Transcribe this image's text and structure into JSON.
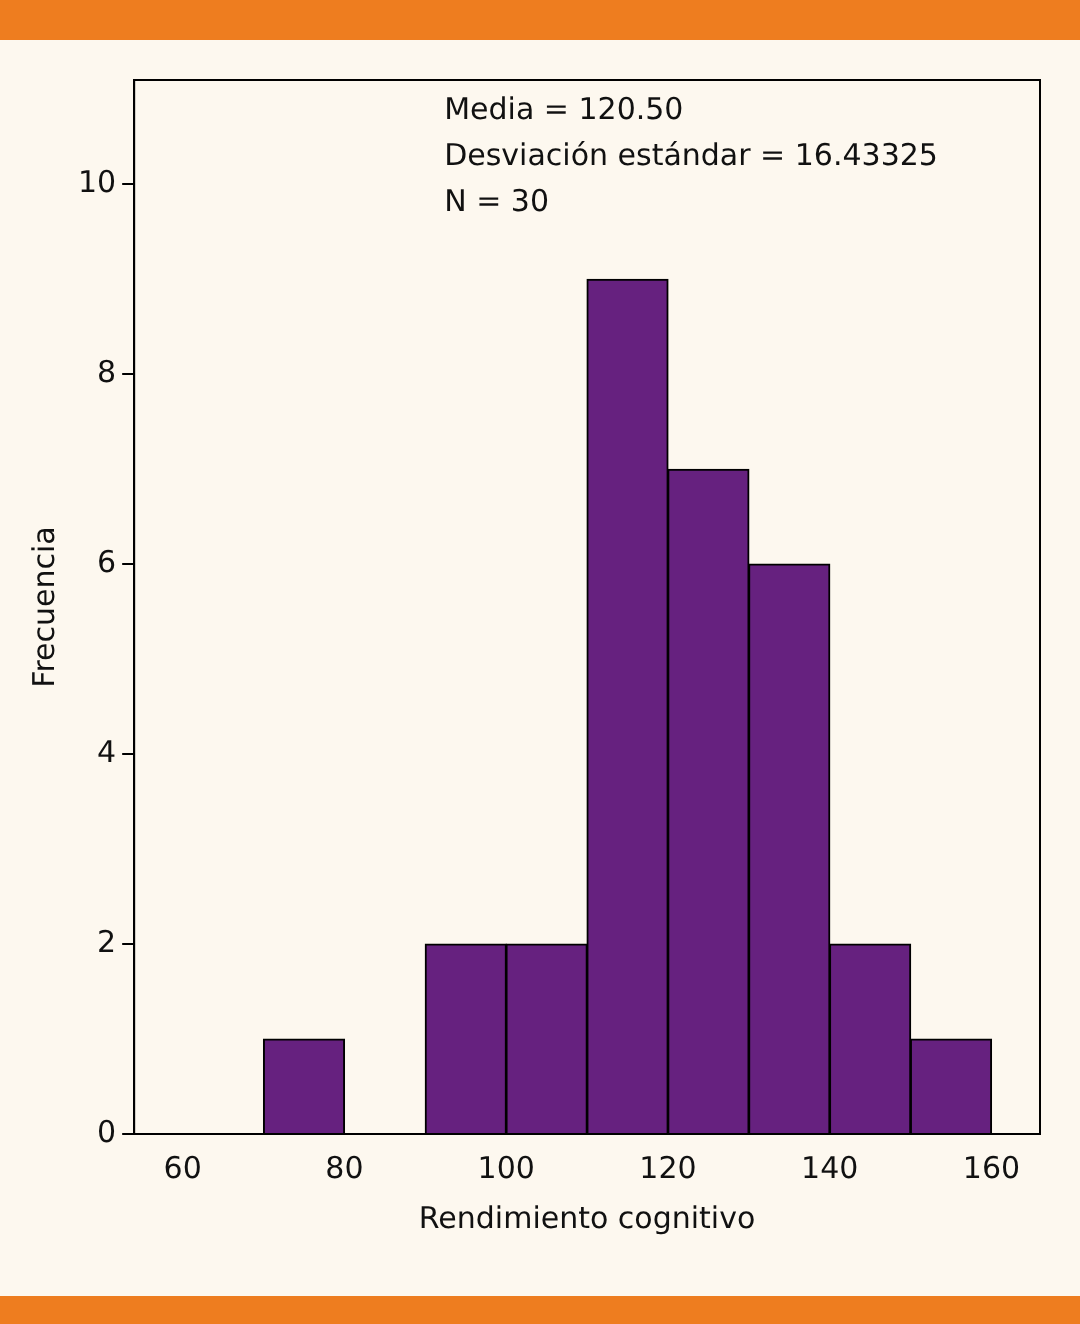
{
  "chart_data": {
    "type": "histogram",
    "xlabel": "Rendimiento cognitivo",
    "ylabel": "Frecuencia",
    "bins": [
      70,
      80,
      90,
      100,
      110,
      120,
      130,
      140,
      150,
      160
    ],
    "values": [
      1,
      0,
      2,
      2,
      9,
      7,
      6,
      2,
      1
    ],
    "color": "#66217f",
    "xlim": [
      54,
      166
    ],
    "xticks": [
      60,
      80,
      100,
      120,
      140,
      160
    ],
    "ylim": [
      0,
      11.1
    ],
    "yticks": [
      0,
      2,
      4,
      6,
      8,
      10
    ],
    "grid": false,
    "legend": false,
    "annotations": [
      "Media = 120.50",
      "Desviación estándar = 16.43325",
      "N = 30"
    ]
  }
}
